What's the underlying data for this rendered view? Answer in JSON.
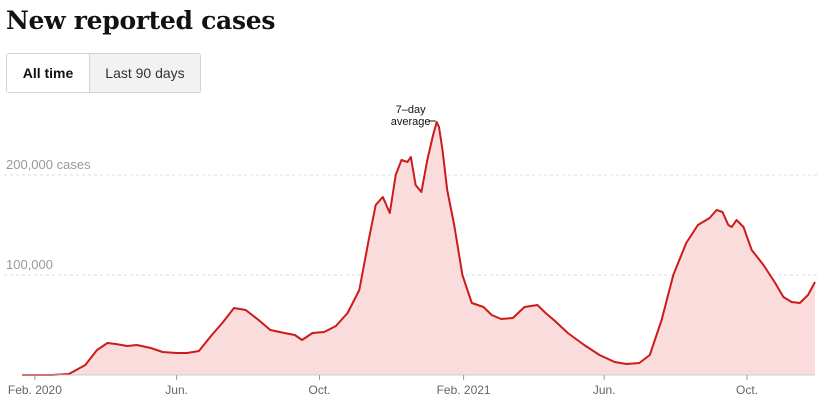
{
  "header": {
    "title": "New reported cases"
  },
  "toggle": {
    "all_time": "All time",
    "last_90": "Last 90 days"
  },
  "colors": {
    "line": "#cc1b1b",
    "fill": "#f9dcdb",
    "grid": "#dcdcdc"
  },
  "chart_data": {
    "type": "area",
    "title": "New reported cases",
    "ylim": [
      0,
      250000
    ],
    "yticks": [
      {
        "value": 100000,
        "label": "100,000"
      },
      {
        "value": 200000,
        "label": "200,000 cases"
      }
    ],
    "xticks": [
      {
        "date": "2020-02-01",
        "label": "Feb. 2020"
      },
      {
        "date": "2020-06-01",
        "label": "Jun."
      },
      {
        "date": "2020-10-01",
        "label": "Oct."
      },
      {
        "date": "2021-02-01",
        "label": "Feb. 2021"
      },
      {
        "date": "2021-06-01",
        "label": "Jun."
      },
      {
        "date": "2021-10-01",
        "label": "Oct."
      }
    ],
    "annotation": {
      "lines": [
        "7–day",
        "average"
      ]
    },
    "series": [
      {
        "x": [
          "2020-01-21",
          "2020-02-15",
          "2020-03-01",
          "2020-03-15",
          "2020-03-25",
          "2020-04-03",
          "2020-04-10",
          "2020-04-20",
          "2020-04-28",
          "2020-05-10",
          "2020-05-20",
          "2020-06-01",
          "2020-06-10",
          "2020-06-20",
          "2020-07-01",
          "2020-07-10",
          "2020-07-20",
          "2020-07-30",
          "2020-08-10",
          "2020-08-20",
          "2020-09-01",
          "2020-09-10",
          "2020-09-16",
          "2020-09-25",
          "2020-10-05",
          "2020-10-15",
          "2020-10-25",
          "2020-11-04",
          "2020-11-12",
          "2020-11-18",
          "2020-11-24",
          "2020-11-30",
          "2020-12-05",
          "2020-12-10",
          "2020-12-15",
          "2020-12-18",
          "2020-12-22",
          "2020-12-27",
          "2021-01-01",
          "2021-01-06",
          "2021-01-09",
          "2021-01-11",
          "2021-01-14",
          "2021-01-18",
          "2021-01-24",
          "2021-01-31",
          "2021-02-08",
          "2021-02-18",
          "2021-02-25",
          "2021-03-05",
          "2021-03-15",
          "2021-03-25",
          "2021-04-05",
          "2021-04-12",
          "2021-04-20",
          "2021-05-01",
          "2021-05-15",
          "2021-05-28",
          "2021-06-10",
          "2021-06-20",
          "2021-07-01",
          "2021-07-10",
          "2021-07-20",
          "2021-07-30",
          "2021-08-10",
          "2021-08-20",
          "2021-08-30",
          "2021-09-05",
          "2021-09-10",
          "2021-09-15",
          "2021-09-18",
          "2021-09-22",
          "2021-09-28",
          "2021-10-05",
          "2021-10-15",
          "2021-10-25",
          "2021-11-01",
          "2021-11-08",
          "2021-11-15",
          "2021-11-22",
          "2021-11-28"
        ],
        "y": [
          0,
          0,
          1000,
          10000,
          25000,
          32000,
          31000,
          29000,
          30000,
          27000,
          23000,
          22000,
          22000,
          24000,
          40000,
          52000,
          67000,
          65000,
          55000,
          45000,
          42000,
          40000,
          35000,
          42000,
          43000,
          49000,
          62000,
          85000,
          135000,
          170000,
          178000,
          162000,
          200000,
          215000,
          213000,
          218000,
          190000,
          183000,
          215000,
          240000,
          253000,
          248000,
          225000,
          185000,
          150000,
          100000,
          72000,
          68000,
          60000,
          56000,
          57000,
          68000,
          70000,
          62000,
          54000,
          42000,
          30000,
          20000,
          13000,
          11000,
          12000,
          20000,
          55000,
          100000,
          132000,
          150000,
          157000,
          165000,
          163000,
          150000,
          148000,
          155000,
          148000,
          125000,
          110000,
          92000,
          78000,
          73000,
          72000,
          80000,
          93000
        ]
      }
    ]
  }
}
